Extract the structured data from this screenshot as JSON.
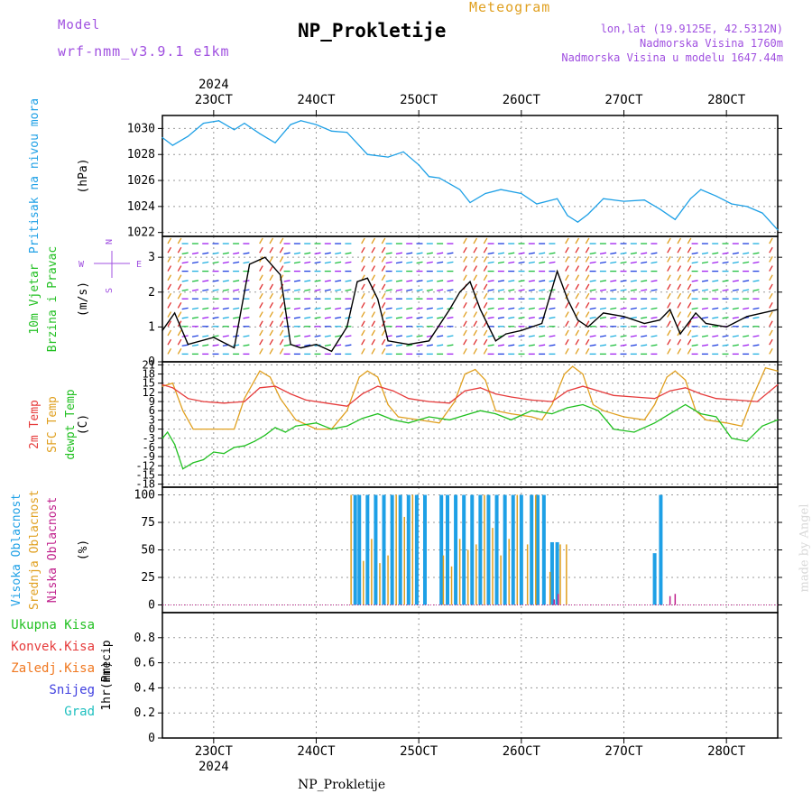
{
  "header": {
    "model_label": "Model",
    "model_name": "wrf-nmm_v3.9.1 e1km",
    "title": "NP_Prokletije",
    "product": "Meteogram",
    "coords": "lon,lat (19.9125E, 42.5312N)",
    "elevation": "Nadmorska Visina 1760m",
    "model_elevation": "Nadmorska Visina u modelu 1647.44m"
  },
  "footer": {
    "station": "NP_Prokletije"
  },
  "watermark": "made by Angel",
  "colors": {
    "pressure": "#1ea0e6",
    "wind_speed": "#000000",
    "t2m": "#e63c3c",
    "sfc_temp": "#e0a020",
    "dewpoint": "#22c022",
    "cloud_high": "#1ea0e6",
    "cloud_mid": "#e0a020",
    "cloud_low": "#c0208c",
    "precip_total": "#22c022",
    "precip_conv": "#e63c3c",
    "precip_frz": "#f07820",
    "precip_snow": "#4040e0",
    "precip_grad": "#20c0c0",
    "side_blue": "#1ea0e6",
    "side_orange": "#e0a020",
    "side_magenta": "#c0208c",
    "side_purple": "#a050e0",
    "side_green": "#22c022"
  },
  "chart_data": {
    "type": "line",
    "time_axis": {
      "year": "2024",
      "ticks": [
        "23OCT",
        "24OCT",
        "25OCT",
        "26OCT",
        "27OCT",
        "28OCT"
      ],
      "range_days": [
        22.5,
        28.5
      ]
    },
    "panels": [
      {
        "id": "pressure",
        "ylabel_lines": [
          "Pritisak na nivou mora"
        ],
        "unit": "(hPa)",
        "yticks": [
          1022,
          1024,
          1026,
          1028,
          1030
        ],
        "ylim": [
          1021.7,
          1031.0
        ],
        "series": [
          {
            "name": "Pritisak na nivou mora",
            "x": [
              22.5,
              22.6,
              22.75,
              22.9,
              23.05,
              23.2,
              23.3,
              23.45,
              23.6,
              23.75,
              23.85,
              24.0,
              24.15,
              24.3,
              24.5,
              24.7,
              24.85,
              25.0,
              25.1,
              25.2,
              25.4,
              25.5,
              25.65,
              25.8,
              26.0,
              26.15,
              26.35,
              26.45,
              26.55,
              26.65,
              26.8,
              27.0,
              27.2,
              27.35,
              27.5,
              27.65,
              27.75,
              27.9,
              28.05,
              28.2,
              28.35,
              28.5
            ],
            "y": [
              1029.3,
              1028.7,
              1029.4,
              1030.4,
              1030.6,
              1029.9,
              1030.4,
              1029.6,
              1028.9,
              1030.3,
              1030.6,
              1030.3,
              1029.8,
              1029.7,
              1028.0,
              1027.8,
              1028.2,
              1027.2,
              1026.3,
              1026.2,
              1025.3,
              1024.3,
              1025.0,
              1025.3,
              1025.0,
              1024.2,
              1024.6,
              1023.3,
              1022.8,
              1023.4,
              1024.6,
              1024.4,
              1024.5,
              1023.8,
              1023.0,
              1024.6,
              1025.3,
              1024.8,
              1024.2,
              1024.0,
              1023.5,
              1022.2
            ]
          }
        ]
      },
      {
        "id": "wind",
        "ylabel_lines": [
          "10m Vjetar",
          "Brzina i Pravac"
        ],
        "unit": "(m/s)",
        "compass": [
          "N",
          "W",
          "E",
          "S"
        ],
        "yticks": [
          0,
          1,
          2,
          3
        ],
        "ylim": [
          0,
          3.6
        ],
        "series": [
          {
            "name": "10m Vjetar",
            "x": [
              22.5,
              22.62,
              22.75,
              23.0,
              23.2,
              23.35,
              23.5,
              23.65,
              23.75,
              23.85,
              24.0,
              24.15,
              24.3,
              24.4,
              24.5,
              24.6,
              24.7,
              24.9,
              25.1,
              25.3,
              25.4,
              25.5,
              25.6,
              25.75,
              25.85,
              26.0,
              26.2,
              26.35,
              26.45,
              26.55,
              26.65,
              26.8,
              27.0,
              27.2,
              27.35,
              27.45,
              27.55,
              27.7,
              27.8,
              28.0,
              28.2,
              28.35,
              28.5
            ],
            "y": [
              0.9,
              1.4,
              0.5,
              0.7,
              0.4,
              2.8,
              3.0,
              2.5,
              0.5,
              0.4,
              0.5,
              0.3,
              1.0,
              2.3,
              2.4,
              1.8,
              0.6,
              0.5,
              0.6,
              1.5,
              2.0,
              2.3,
              1.5,
              0.6,
              0.8,
              0.9,
              1.1,
              2.6,
              1.8,
              1.2,
              1.0,
              1.4,
              1.3,
              1.1,
              1.2,
              1.5,
              0.8,
              1.4,
              1.1,
              1.0,
              1.3,
              1.4,
              1.5
            ]
          }
        ]
      },
      {
        "id": "temperature",
        "ylabel_lines": [
          "2m Temp",
          "SFC Temp",
          "dewpt Temp"
        ],
        "unit": "(C)",
        "yticks": [
          21,
          18,
          15,
          12,
          9,
          6,
          3,
          0,
          -3,
          -6,
          -9,
          -12,
          -15,
          -18
        ],
        "ylim": [
          -19.0,
          22.0
        ],
        "series": [
          {
            "name": "2m Temp",
            "x": [
              22.5,
              22.6,
              22.75,
              22.9,
              23.1,
              23.3,
              23.45,
              23.6,
              23.75,
              23.9,
              24.1,
              24.3,
              24.45,
              24.6,
              24.75,
              24.9,
              25.1,
              25.3,
              25.45,
              25.6,
              25.75,
              25.9,
              26.1,
              26.3,
              26.45,
              26.6,
              26.75,
              26.9,
              27.1,
              27.3,
              27.45,
              27.6,
              27.75,
              27.9,
              28.1,
              28.3,
              28.5
            ],
            "y": [
              14.5,
              13.5,
              10.0,
              9.0,
              8.5,
              9.0,
              13.5,
              14.0,
              11.5,
              9.5,
              8.5,
              7.5,
              11.5,
              14.0,
              12.5,
              10.0,
              9.0,
              8.5,
              12.5,
              13.5,
              11.5,
              10.5,
              9.5,
              9.0,
              12.5,
              14.0,
              12.5,
              11.0,
              10.5,
              10.0,
              12.5,
              13.5,
              11.5,
              10.0,
              9.5,
              9.0,
              14.5
            ]
          },
          {
            "name": "SFC Temp",
            "x": [
              22.5,
              22.6,
              22.7,
              22.8,
              23.0,
              23.2,
              23.3,
              23.45,
              23.55,
              23.65,
              23.8,
              24.0,
              24.15,
              24.3,
              24.42,
              24.5,
              24.6,
              24.7,
              24.8,
              25.0,
              25.2,
              25.35,
              25.45,
              25.55,
              25.65,
              25.75,
              25.9,
              26.1,
              26.2,
              26.3,
              26.42,
              26.5,
              26.6,
              26.7,
              26.8,
              27.0,
              27.2,
              27.3,
              27.42,
              27.5,
              27.6,
              27.7,
              27.8,
              28.0,
              28.15,
              28.25,
              28.38,
              28.5
            ],
            "y": [
              14.0,
              15.0,
              6.0,
              0.0,
              0.0,
              0.0,
              10.0,
              19.0,
              17.0,
              10.0,
              3.0,
              0.0,
              0.0,
              6.0,
              17.0,
              19.0,
              17.0,
              8.0,
              4.0,
              3.0,
              2.0,
              9.0,
              18.0,
              19.5,
              16.0,
              6.0,
              5.0,
              4.0,
              3.0,
              8.0,
              18.0,
              20.5,
              18.0,
              8.0,
              6.0,
              4.0,
              3.0,
              8.0,
              17.0,
              19.0,
              16.0,
              6.0,
              3.0,
              2.0,
              1.0,
              10.0,
              20.0,
              19.0
            ]
          },
          {
            "name": "dewpt Temp",
            "x": [
              22.5,
              22.55,
              22.62,
              22.7,
              22.8,
              22.9,
              23.0,
              23.1,
              23.2,
              23.3,
              23.4,
              23.5,
              23.6,
              23.7,
              23.8,
              24.0,
              24.15,
              24.3,
              24.45,
              24.6,
              24.75,
              24.9,
              25.1,
              25.3,
              25.45,
              25.6,
              25.75,
              25.9,
              26.1,
              26.3,
              26.45,
              26.6,
              26.75,
              26.9,
              27.1,
              27.3,
              27.45,
              27.6,
              27.75,
              27.9,
              28.05,
              28.2,
              28.35,
              28.5
            ],
            "y": [
              -3.0,
              -1.0,
              -5.0,
              -13.0,
              -11.0,
              -10.0,
              -7.5,
              -8.0,
              -6.0,
              -5.5,
              -4.0,
              -2.0,
              0.5,
              -1.0,
              1.0,
              2.0,
              0.0,
              1.0,
              3.5,
              5.0,
              3.0,
              2.0,
              4.0,
              3.0,
              4.5,
              6.0,
              5.0,
              3.0,
              6.0,
              5.0,
              7.0,
              8.0,
              6.0,
              0.0,
              -1.0,
              2.0,
              5.0,
              8.0,
              5.0,
              4.0,
              -3.0,
              -4.0,
              1.0,
              3.0
            ]
          }
        ]
      },
      {
        "id": "clouds",
        "ylabel_lines": [
          "Visoka Oblacnost",
          "Srednja Oblacnost",
          "Niska Oblacnost"
        ],
        "unit": "(%)",
        "yticks": [
          0,
          25,
          50,
          75,
          100
        ],
        "ylim": [
          -7,
          107
        ],
        "series": [
          {
            "name": "Visoka Oblacnost",
            "type": "bar",
            "x": [
              24.38,
              24.42,
              24.5,
              24.58,
              24.66,
              24.74,
              24.82,
              24.9,
              24.98,
              25.06,
              25.22,
              25.28,
              25.36,
              25.44,
              25.52,
              25.6,
              25.68,
              25.76,
              25.84,
              25.92,
              26.0,
              26.1,
              26.16,
              26.22,
              26.3,
              26.35,
              27.3,
              27.36
            ],
            "y": [
              100,
              100,
              100,
              100,
              100,
              100,
              100,
              100,
              100,
              100,
              100,
              100,
              100,
              100,
              100,
              100,
              100,
              100,
              100,
              100,
              100,
              100,
              100,
              100,
              57,
              57,
              47,
              100
            ]
          },
          {
            "name": "Srednja Oblacnost",
            "type": "bar",
            "x": [
              24.34,
              24.46,
              24.54,
              24.62,
              24.7,
              24.78,
              24.86,
              24.94,
              25.24,
              25.32,
              25.4,
              25.48,
              25.56,
              25.64,
              25.72,
              25.8,
              25.88,
              25.96,
              26.06,
              26.14,
              26.28,
              26.38,
              26.44
            ],
            "y": [
              100,
              40,
              60,
              38,
              45,
              100,
              80,
              100,
              45,
              35,
              60,
              50,
              55,
              100,
              70,
              45,
              60,
              100,
              55,
              100,
              30,
              55,
              55
            ]
          },
          {
            "name": "Niska Oblacnost",
            "type": "bar",
            "x": [
              26.32,
              26.36,
              27.45,
              27.5
            ],
            "y": [
              5,
              10,
              8,
              10
            ]
          }
        ]
      },
      {
        "id": "precip",
        "ylabel_lines": [
          "1hr Precip"
        ],
        "unit": "(mm)",
        "legend": [
          "Ukupna Kisa",
          "Konvek.Kisa",
          "Zaledj.Kisa",
          "Snijeg",
          "Grad"
        ],
        "yticks": [
          0,
          0.2,
          0.4,
          0.6,
          0.8
        ],
        "ylim": [
          0,
          1.0
        ],
        "series": []
      }
    ]
  }
}
